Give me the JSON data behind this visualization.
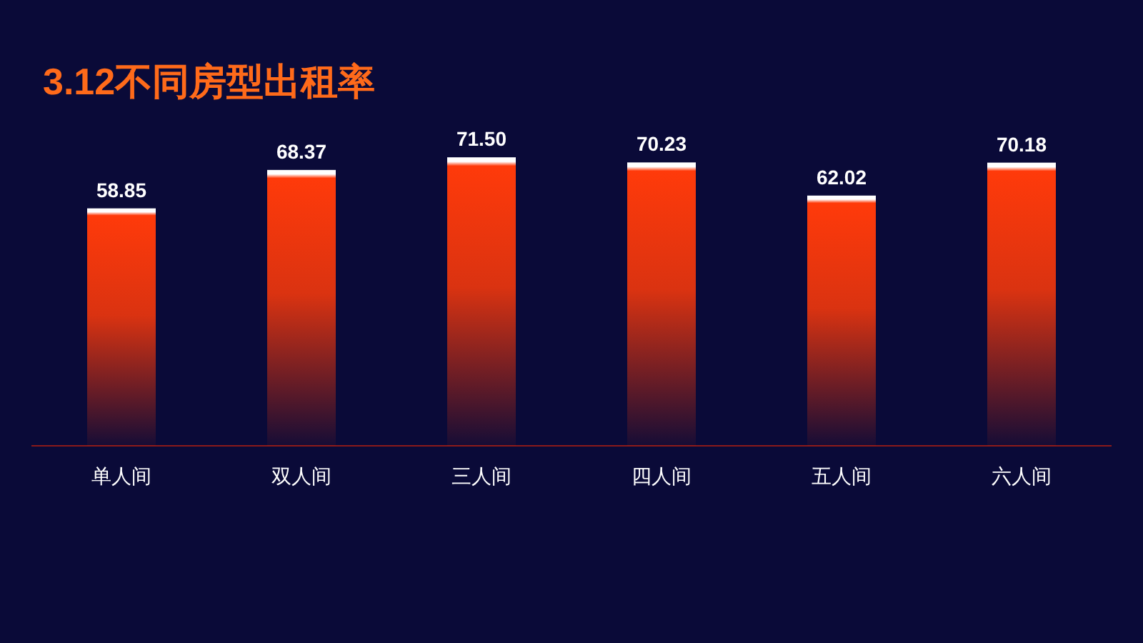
{
  "chart_data": {
    "type": "bar",
    "title": "3.12不同房型出租率",
    "categories": [
      "单人间",
      "双人间",
      "三人间",
      "四人间",
      "五人间",
      "六人间"
    ],
    "values": [
      58.85,
      68.37,
      71.5,
      70.23,
      62.02,
      70.18
    ],
    "value_labels": [
      "58.85",
      "68.37",
      "71.50",
      "70.23",
      "62.02",
      "70.18"
    ],
    "color": "#ff3a0a"
  }
}
